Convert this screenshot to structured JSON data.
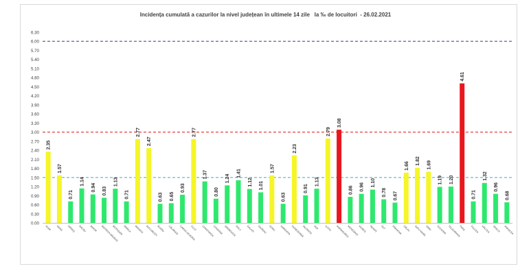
{
  "chart_data": {
    "type": "bar",
    "title": "Incidența cumulată a cazurilor la nivel județean în ultimele 14 zile   la ‰ de locuitori  - 26.02.2021",
    "categories": [
      "ALBA",
      "ARAD",
      "ARGEȘ",
      "BACĂU",
      "BIHOR",
      "BISTRIȚA NĂSĂUD",
      "BOTOȘANI",
      "BRĂILA",
      "BRAȘOV",
      "BUCUREȘTI",
      "BUZĂU",
      "CĂLĂRAȘI",
      "CARAȘ-SEVERIN",
      "CLUJ",
      "CONSTANȚA",
      "COVASNA",
      "DÂMBOVIȚA",
      "DOLJ",
      "GALAȚI",
      "GIURGIU",
      "GORJ",
      "HARGHITA",
      "HUNEDOARA",
      "IALOMIȚA",
      "IAȘI",
      "ILFOV",
      "MARAMUREȘ",
      "MEHEDINȚI",
      "MUREȘ",
      "NEAMȚ",
      "OLT",
      "PRAHOVA",
      "SĂLAJ",
      "SATU-MARE",
      "SIBIU",
      "SUCEAVA",
      "TELEORMAN",
      "TIMIȘ",
      "TULCEA",
      "VÂLCEA",
      "VASLUI",
      "VRANCEA"
    ],
    "values": [
      2.35,
      1.57,
      0.71,
      1.14,
      0.94,
      0.83,
      1.13,
      0.71,
      2.77,
      2.47,
      0.63,
      0.65,
      0.93,
      2.77,
      1.37,
      0.8,
      1.24,
      1.41,
      1.12,
      1.01,
      1.57,
      0.63,
      2.23,
      0.91,
      1.13,
      2.79,
      3.08,
      0.86,
      0.96,
      1.1,
      0.78,
      0.67,
      1.66,
      1.82,
      1.69,
      1.19,
      1.2,
      4.61,
      0.71,
      1.32,
      0.96,
      0.68
    ],
    "value_labels": [
      "2.35",
      "1.57",
      "0.71",
      "1.14",
      "0.94",
      "0.83",
      "1.13",
      "0.71",
      "2.77",
      "2.47",
      "0.63",
      "0.65",
      "0.93",
      "2.77",
      "1.37",
      "0.80",
      "1.24",
      "1.41",
      "1.12",
      "1.01",
      "1.57",
      "0.63",
      "2.23",
      "0.91",
      "1.13",
      "2.79",
      "3.08",
      "0.86",
      "0.96",
      "1.10",
      "0.78",
      "0.67",
      "1.66",
      "1.82",
      "1.69",
      "1.19",
      "1.20",
      "4.61",
      "0.71",
      "1.32",
      "0.96",
      "0.68"
    ],
    "ylim": [
      0,
      6.3
    ],
    "yticks": [
      "0.00",
      "0.30",
      "0.60",
      "0.90",
      "1.20",
      "1.50",
      "1.80",
      "2.10",
      "2.40",
      "2.70",
      "3.00",
      "3.30",
      "3.60",
      "3.90",
      "4.20",
      "4.50",
      "4.80",
      "5.10",
      "5.40",
      "5.70",
      "6.00",
      "6.30"
    ],
    "reference_lines": [
      {
        "value": 6.0,
        "color": "#5b5bb5"
      },
      {
        "value": 3.0,
        "color": "#e0403a"
      },
      {
        "value": 1.5,
        "color": "#4bb8c9"
      }
    ],
    "colors": {
      "green": "#2ee86e",
      "yellow": "#f5f528",
      "red": "#e8171d"
    },
    "thresholds": [
      1.5,
      3.0
    ],
    "xlabel": "",
    "ylabel": "",
    "grid": false,
    "legend": "none"
  }
}
